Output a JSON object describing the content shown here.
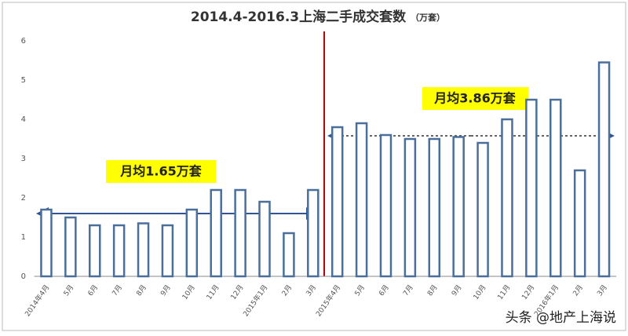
{
  "chart_data": {
    "type": "bar",
    "title": "2014.4-2016.3上海二手成交套数",
    "subtitle": "（万套）",
    "categories": [
      "2014年4月",
      "5月",
      "6月",
      "7月",
      "8月",
      "9月",
      "10月",
      "11月",
      "12月",
      "2015年1月",
      "2月",
      "3月",
      "2015年4月",
      "5月",
      "6月",
      "7月",
      "8月",
      "9月",
      "10月",
      "11月",
      "12月",
      "2016年1月",
      "2月",
      "3月"
    ],
    "values": [
      1.7,
      1.5,
      1.3,
      1.3,
      1.35,
      1.3,
      1.7,
      2.2,
      2.2,
      1.9,
      1.1,
      2.2,
      3.8,
      3.9,
      3.6,
      3.5,
      3.5,
      3.55,
      3.4,
      4.0,
      4.5,
      4.5,
      2.7,
      5.45
    ],
    "color": "#4a6f9a",
    "ylim": [
      0,
      6
    ],
    "yticks": [
      0,
      1,
      2,
      3,
      4,
      5,
      6
    ],
    "grid": false,
    "annotations": [
      "月均1.65万套",
      "月均3.86万套"
    ],
    "watermark": "头条 @地产上海说"
  }
}
